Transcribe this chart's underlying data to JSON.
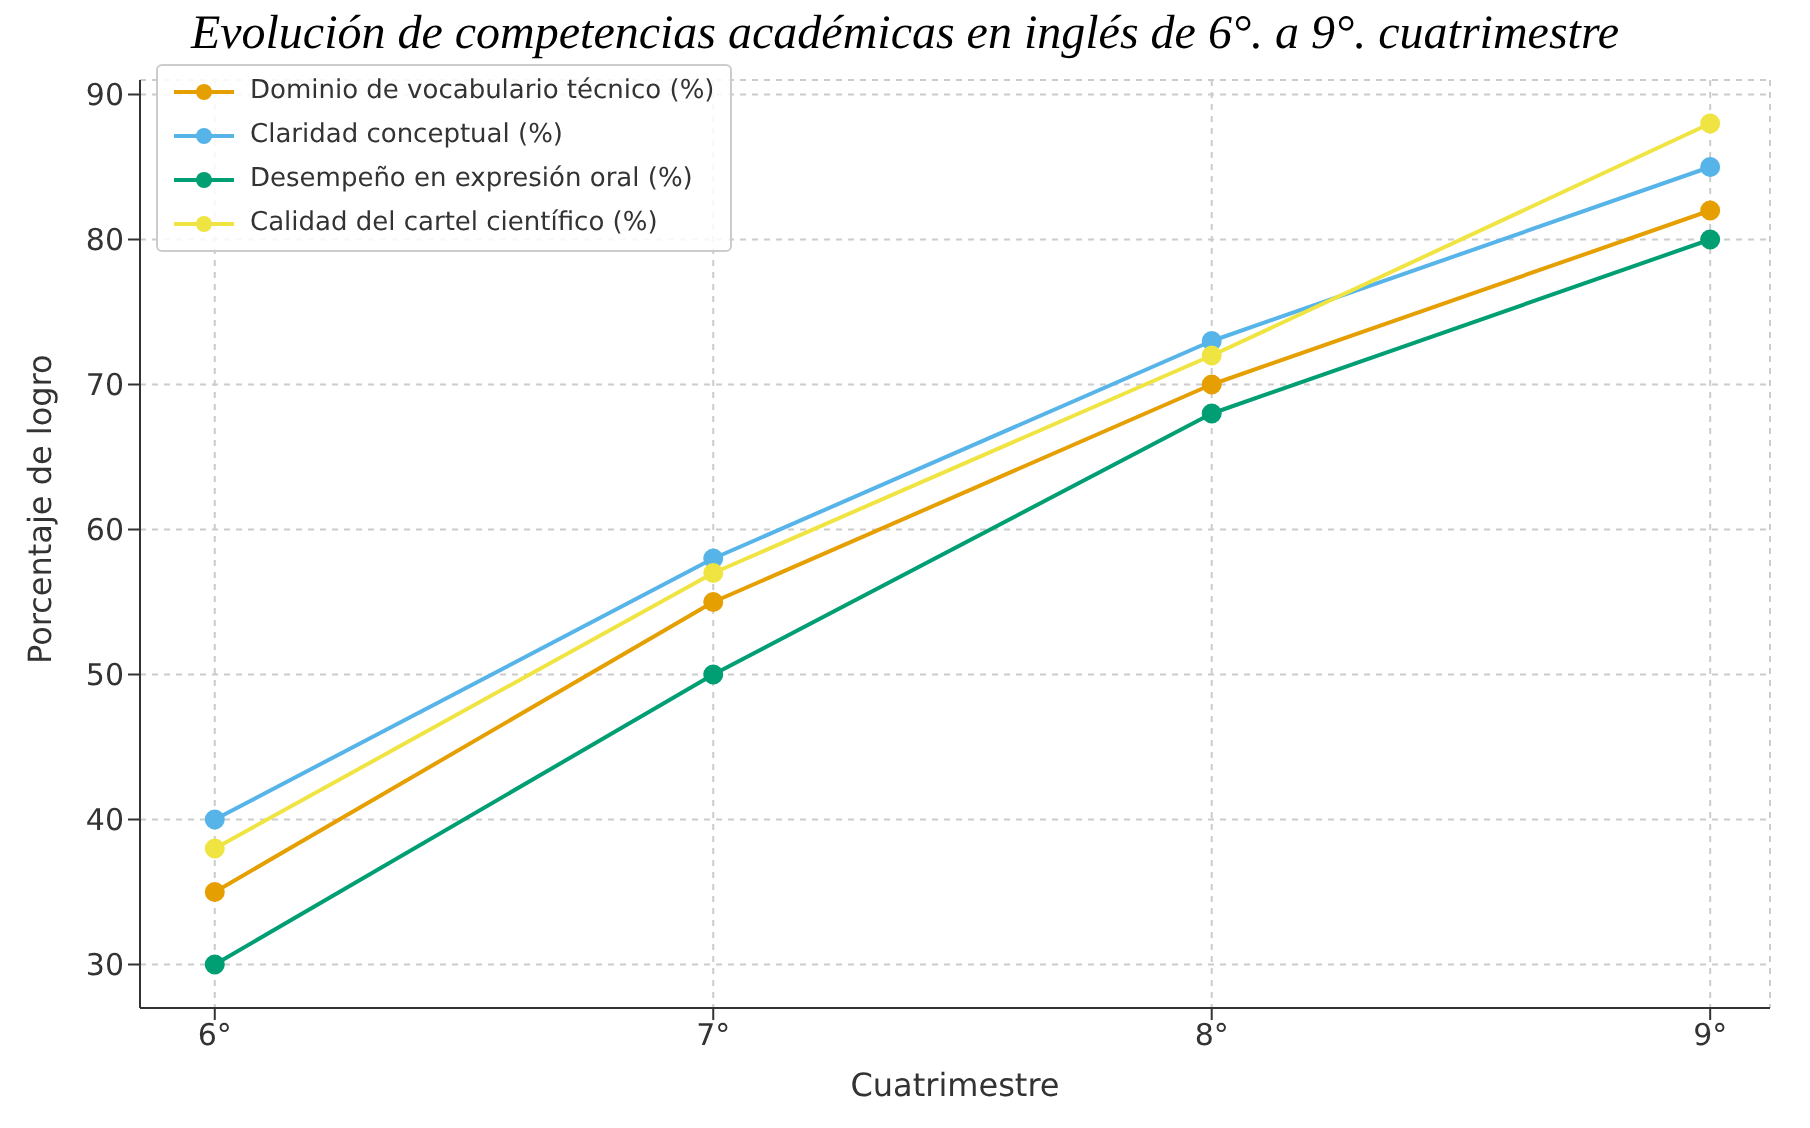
{
  "chart_data": {
    "type": "line",
    "title": "Evolución de competencias académicas en inglés de 6°. a 9°. cuatrimestre",
    "xlabel": "Cuatrimestre",
    "ylabel": "Porcentaje de logro",
    "x": [
      6,
      7,
      8,
      9
    ],
    "xlim": [
      5.85,
      9.12
    ],
    "xticks": [
      {
        "value": 6,
        "label": "6°"
      },
      {
        "value": 7,
        "label": "7°"
      },
      {
        "value": 8,
        "label": "8°"
      },
      {
        "value": 9,
        "label": "9°"
      }
    ],
    "ylim": [
      27,
      91
    ],
    "yticks": [
      30,
      40,
      50,
      60,
      70,
      80,
      90
    ],
    "grid": true,
    "legend": "top left",
    "marker": "circle",
    "line_style": "solid",
    "series": [
      {
        "name": "Dominio de vocabulario técnico (%)",
        "color": "#e69f00",
        "values": [
          35,
          55,
          70,
          82
        ]
      },
      {
        "name": "Claridad conceptual (%)",
        "color": "#56b4e9",
        "values": [
          40,
          58,
          73,
          85
        ]
      },
      {
        "name": "Desempeño en expresión oral (%)",
        "color": "#009e73",
        "values": [
          30,
          50,
          68,
          80
        ]
      },
      {
        "name": "Calidad del cartel científico (%)",
        "color": "#f0e442",
        "values": [
          38,
          57,
          72,
          88
        ]
      }
    ]
  }
}
